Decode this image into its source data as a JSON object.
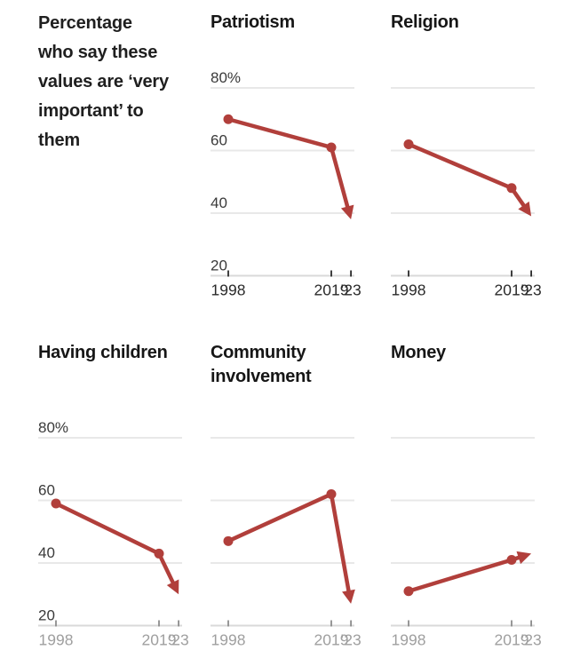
{
  "intro": {
    "text": "Percentage who say these values are ‘very important’ to them"
  },
  "palette": {
    "accent_line": "#b13f3b",
    "title_text": "#161616",
    "y_label": "#3a3a3a",
    "x_label": "#2a2a2a",
    "x_label_muted": "#9f9f9f",
    "tick": "#2a2a2a",
    "tick_muted": "#8c8c8c",
    "gridline": "#e8e8e8",
    "axis_line": "#d9d9d9",
    "background": "#ffffff"
  },
  "axes": {
    "ylim": [
      20,
      80
    ],
    "y_ticks": [
      {
        "value": 80,
        "label": "80%"
      },
      {
        "value": 60,
        "label": "60"
      },
      {
        "value": 40,
        "label": "40"
      },
      {
        "value": 20,
        "label": "20"
      }
    ],
    "x_tick_years": [
      1998,
      2019,
      2023
    ],
    "x_tick_labels": [
      "1998",
      "2019",
      "’23"
    ],
    "grid": true,
    "legend": "none"
  },
  "chart_data": [
    {
      "type": "line",
      "title": "Patriotism",
      "x": [
        1998,
        2019,
        2023
      ],
      "values": [
        70,
        61,
        38
      ],
      "arrow_end": true,
      "show_y_labels": true,
      "muted_x_labels": false
    },
    {
      "type": "line",
      "title": "Religion",
      "x": [
        1998,
        2019,
        2023
      ],
      "values": [
        62,
        48,
        39
      ],
      "arrow_end": true,
      "show_y_labels": false,
      "muted_x_labels": false
    },
    {
      "type": "line",
      "title": "Having children",
      "x": [
        1998,
        2019,
        2023
      ],
      "values": [
        59,
        43,
        30
      ],
      "arrow_end": true,
      "show_y_labels": true,
      "muted_x_labels": true
    },
    {
      "type": "line",
      "title": "Community involvement",
      "x": [
        1998,
        2019,
        2023
      ],
      "values": [
        47,
        62,
        27
      ],
      "arrow_end": true,
      "show_y_labels": false,
      "muted_x_labels": true
    },
    {
      "type": "line",
      "title": "Money",
      "x": [
        1998,
        2019,
        2023
      ],
      "values": [
        31,
        41,
        43
      ],
      "arrow_end": true,
      "show_y_labels": false,
      "muted_x_labels": true
    }
  ]
}
